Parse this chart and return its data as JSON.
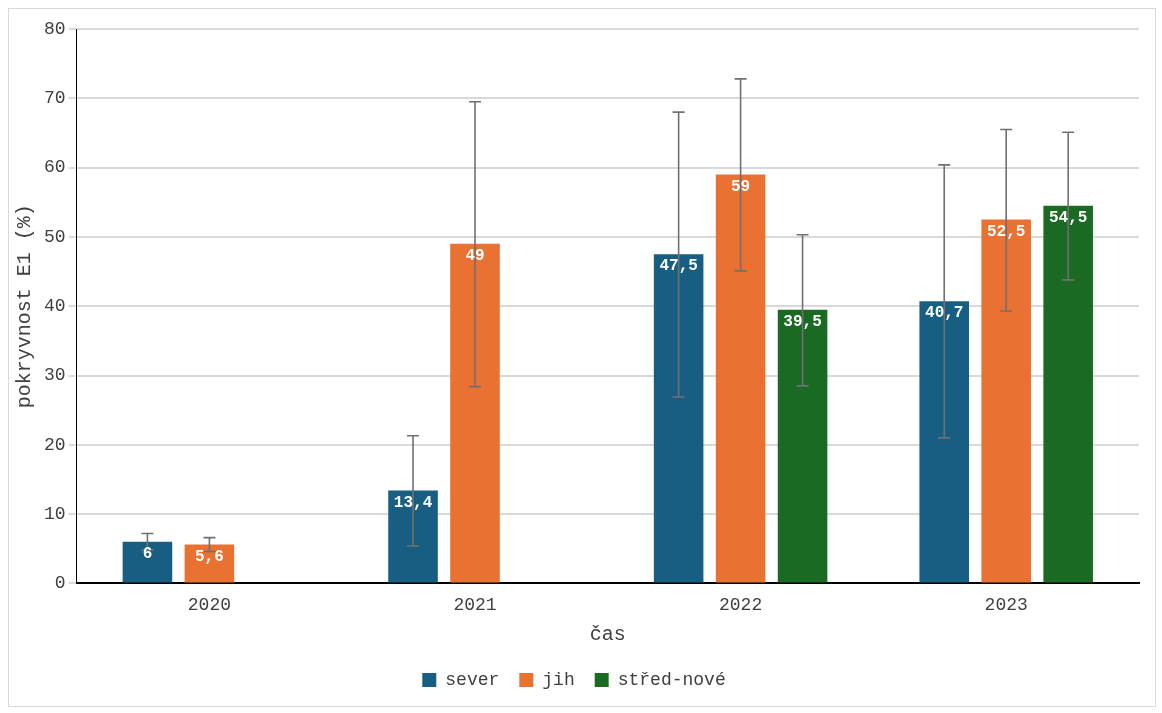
{
  "chart_data": {
    "type": "bar",
    "xlabel": "čas",
    "ylabel": "pokryvnost E1 (%)",
    "categories": [
      "2020",
      "2021",
      "2022",
      "2023"
    ],
    "series": [
      {
        "name": "sever",
        "color": "#175e82",
        "values": [
          6,
          13.4,
          47.5,
          40.7
        ],
        "value_labels": [
          "6",
          "13,4",
          "47,5",
          "40,7"
        ],
        "errors": [
          [
            4.8,
            7.2
          ],
          [
            5.4,
            21.3
          ],
          [
            26.9,
            68.0
          ],
          [
            21.0,
            60.4
          ]
        ]
      },
      {
        "name": "jih",
        "color": "#e97132",
        "values": [
          5.6,
          49,
          59,
          52.5
        ],
        "value_labels": [
          "5,6",
          "49",
          "59",
          "52,5"
        ],
        "errors": [
          [
            4.6,
            6.6
          ],
          [
            28.4,
            69.5
          ],
          [
            45.1,
            72.8
          ],
          [
            39.3,
            65.5
          ]
        ]
      },
      {
        "name": "střed-nové",
        "color": "#1b6a23",
        "values": [
          null,
          null,
          39.5,
          54.5
        ],
        "value_labels": [
          null,
          null,
          "39,5",
          "54,5"
        ],
        "errors": [
          null,
          null,
          [
            28.5,
            50.3
          ],
          [
            43.8,
            65.1
          ]
        ]
      }
    ],
    "ylim": [
      0,
      80
    ],
    "yticks": [
      0,
      10,
      20,
      30,
      40,
      50,
      60,
      70,
      80
    ],
    "grid": "y",
    "legend": "bottom"
  }
}
